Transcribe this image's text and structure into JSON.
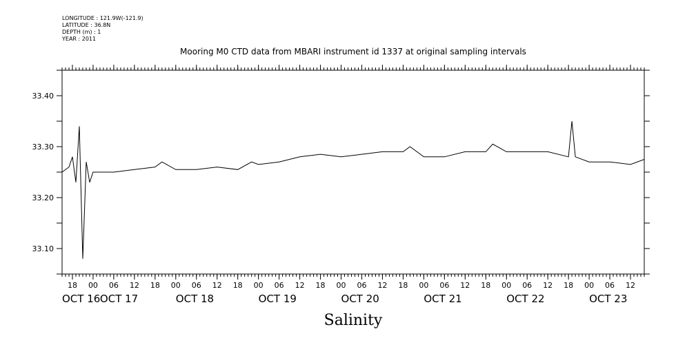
{
  "meta": {
    "longitude": "LONGITUDE : 121.9W(-121.9)",
    "latitude": "LATITUDE : 36.8N",
    "depth": "DEPTH (m) : 1",
    "year": "YEAR : 2011"
  },
  "chart_data": {
    "type": "line",
    "title": "Mooring M0 CTD data from MBARI instrument id 1337 at original sampling intervals",
    "xlabel": "Salinity",
    "ylabel": "",
    "xlim": [
      "2011-10-16T15:00",
      "2011-10-23T16:00"
    ],
    "ylim": [
      33.05,
      33.45
    ],
    "yticks": [
      33.1,
      33.2,
      33.3,
      33.4
    ],
    "ytick_labels": [
      "33.10",
      "33.20",
      "33.30",
      "33.40"
    ],
    "xticks": [
      {
        "t": "2011-10-16T18:00",
        "label": "18"
      },
      {
        "t": "2011-10-17T00:00",
        "label": "00"
      },
      {
        "t": "2011-10-17T06:00",
        "label": "06"
      },
      {
        "t": "2011-10-17T12:00",
        "label": "12"
      },
      {
        "t": "2011-10-17T18:00",
        "label": "18"
      },
      {
        "t": "2011-10-18T00:00",
        "label": "00"
      },
      {
        "t": "2011-10-18T06:00",
        "label": "06"
      },
      {
        "t": "2011-10-18T12:00",
        "label": "12"
      },
      {
        "t": "2011-10-18T18:00",
        "label": "18"
      },
      {
        "t": "2011-10-19T00:00",
        "label": "00"
      },
      {
        "t": "2011-10-19T06:00",
        "label": "06"
      },
      {
        "t": "2011-10-19T12:00",
        "label": "12"
      },
      {
        "t": "2011-10-19T18:00",
        "label": "18"
      },
      {
        "t": "2011-10-20T00:00",
        "label": "00"
      },
      {
        "t": "2011-10-20T06:00",
        "label": "06"
      },
      {
        "t": "2011-10-20T12:00",
        "label": "12"
      },
      {
        "t": "2011-10-20T18:00",
        "label": "18"
      },
      {
        "t": "2011-10-21T00:00",
        "label": "00"
      },
      {
        "t": "2011-10-21T06:00",
        "label": "06"
      },
      {
        "t": "2011-10-21T12:00",
        "label": "12"
      },
      {
        "t": "2011-10-21T18:00",
        "label": "18"
      },
      {
        "t": "2011-10-22T00:00",
        "label": "00"
      },
      {
        "t": "2011-10-22T06:00",
        "label": "06"
      },
      {
        "t": "2011-10-22T12:00",
        "label": "12"
      },
      {
        "t": "2011-10-22T18:00",
        "label": "18"
      },
      {
        "t": "2011-10-23T00:00",
        "label": "00"
      },
      {
        "t": "2011-10-23T06:00",
        "label": "06"
      },
      {
        "t": "2011-10-23T12:00",
        "label": "12"
      }
    ],
    "day_labels": [
      {
        "t": "2011-10-16T15:00",
        "label": "OCT 16"
      },
      {
        "t": "2011-10-17T02:00",
        "label": "OCT 17"
      },
      {
        "t": "2011-10-18T00:00",
        "label": "OCT 18"
      },
      {
        "t": "2011-10-19T00:00",
        "label": "OCT 19"
      },
      {
        "t": "2011-10-20T00:00",
        "label": "OCT 20"
      },
      {
        "t": "2011-10-21T00:00",
        "label": "OCT 21"
      },
      {
        "t": "2011-10-22T00:00",
        "label": "OCT 22"
      },
      {
        "t": "2011-10-23T00:00",
        "label": "OCT 23"
      }
    ],
    "series": [
      {
        "x": [
          "2011-10-16T15:00",
          "2011-10-16T17:00",
          "2011-10-16T18:00",
          "2011-10-16T19:00",
          "2011-10-16T20:00",
          "2011-10-16T21:00",
          "2011-10-16T22:00",
          "2011-10-16T23:00",
          "2011-10-17T00:00",
          "2011-10-17T01:00",
          "2011-10-17T02:00",
          "2011-10-17T06:00",
          "2011-10-17T12:00",
          "2011-10-17T18:00",
          "2011-10-17T20:00",
          "2011-10-18T00:00",
          "2011-10-18T06:00",
          "2011-10-18T12:00",
          "2011-10-18T18:00",
          "2011-10-18T22:00",
          "2011-10-19T00:00",
          "2011-10-19T06:00",
          "2011-10-19T12:00",
          "2011-10-19T18:00",
          "2011-10-20T00:00",
          "2011-10-20T06:00",
          "2011-10-20T12:00",
          "2011-10-20T18:00",
          "2011-10-20T20:00",
          "2011-10-21T00:00",
          "2011-10-21T06:00",
          "2011-10-21T12:00",
          "2011-10-21T18:00",
          "2011-10-21T20:00",
          "2011-10-22T00:00",
          "2011-10-22T06:00",
          "2011-10-22T12:00",
          "2011-10-22T18:00",
          "2011-10-22T19:00",
          "2011-10-22T20:00",
          "2011-10-23T00:00",
          "2011-10-23T06:00",
          "2011-10-23T12:00",
          "2011-10-23T16:00"
        ],
        "y": [
          33.25,
          33.26,
          33.28,
          33.23,
          33.34,
          33.08,
          33.27,
          33.23,
          33.25,
          33.25,
          33.25,
          33.25,
          33.255,
          33.26,
          33.27,
          33.255,
          33.255,
          33.26,
          33.255,
          33.27,
          33.265,
          33.27,
          33.28,
          33.285,
          33.28,
          33.285,
          33.29,
          33.29,
          33.3,
          33.28,
          33.28,
          33.29,
          33.29,
          33.305,
          33.29,
          33.29,
          33.29,
          33.28,
          33.35,
          33.28,
          33.27,
          33.27,
          33.265,
          33.275
        ]
      }
    ]
  }
}
